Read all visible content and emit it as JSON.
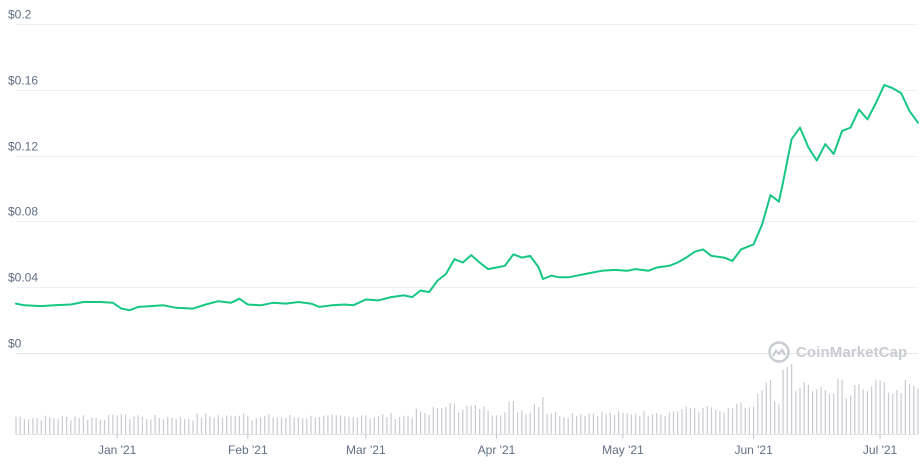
{
  "watermark": {
    "text": "CoinMarketCap",
    "icon": "coinmarketcap-logo-icon",
    "color": "#c9ccd3"
  },
  "chart_data": {
    "type": "line",
    "title": "",
    "xlabel": "",
    "ylabel": "",
    "y_tick_labels": [
      "$0",
      "$0.04",
      "$0.08",
      "$0.12",
      "$0.16",
      "$0.2"
    ],
    "y_ticks": [
      0,
      0.04,
      0.08,
      0.12,
      0.16,
      0.2
    ],
    "ylim": [
      0,
      0.2
    ],
    "x_tick_labels": [
      "Jan '21",
      "Feb '21",
      "Mar '21",
      "Apr '21",
      "May '21",
      "Jun '21",
      "Jul '21"
    ],
    "x_ticks": [
      "2021-01-01",
      "2021-02-01",
      "2021-03-01",
      "2021-04-01",
      "2021-05-01",
      "2021-06-01",
      "2021-07-01"
    ],
    "xlim": [
      "2020-12-08",
      "2021-07-10"
    ],
    "grid": true,
    "line_color": "#16c784",
    "volume_color": "#c8cbd3",
    "series": [
      {
        "values": [
          [
            "2020-12-08",
            0.03
          ],
          [
            "2020-12-10",
            0.029
          ],
          [
            "2020-12-14",
            0.0285
          ],
          [
            "2020-12-17",
            0.029
          ],
          [
            "2020-12-21",
            0.0295
          ],
          [
            "2020-12-24",
            0.031
          ],
          [
            "2020-12-28",
            0.031
          ],
          [
            "2020-12-31",
            0.0305
          ],
          [
            "2021-01-02",
            0.027
          ],
          [
            "2021-01-04",
            0.026
          ],
          [
            "2021-01-06",
            0.028
          ],
          [
            "2021-01-09",
            0.0285
          ],
          [
            "2021-01-12",
            0.029
          ],
          [
            "2021-01-15",
            0.0275
          ],
          [
            "2021-01-19",
            0.027
          ],
          [
            "2021-01-22",
            0.0295
          ],
          [
            "2021-01-25",
            0.0315
          ],
          [
            "2021-01-28",
            0.0305
          ],
          [
            "2021-01-30",
            0.033
          ],
          [
            "2021-02-01",
            0.0295
          ],
          [
            "2021-02-04",
            0.029
          ],
          [
            "2021-02-07",
            0.0305
          ],
          [
            "2021-02-10",
            0.03
          ],
          [
            "2021-02-13",
            0.031
          ],
          [
            "2021-02-16",
            0.03
          ],
          [
            "2021-02-18",
            0.028
          ],
          [
            "2021-02-21",
            0.029
          ],
          [
            "2021-02-24",
            0.0295
          ],
          [
            "2021-02-26",
            0.029
          ],
          [
            "2021-03-01",
            0.0325
          ],
          [
            "2021-03-04",
            0.032
          ],
          [
            "2021-03-07",
            0.034
          ],
          [
            "2021-03-10",
            0.035
          ],
          [
            "2021-03-12",
            0.034
          ],
          [
            "2021-03-14",
            0.038
          ],
          [
            "2021-03-16",
            0.037
          ],
          [
            "2021-03-18",
            0.044
          ],
          [
            "2021-03-20",
            0.048
          ],
          [
            "2021-03-22",
            0.057
          ],
          [
            "2021-03-24",
            0.055
          ],
          [
            "2021-03-26",
            0.0595
          ],
          [
            "2021-03-28",
            0.055
          ],
          [
            "2021-03-30",
            0.051
          ],
          [
            "2021-04-01",
            0.052
          ],
          [
            "2021-04-03",
            0.053
          ],
          [
            "2021-04-05",
            0.06
          ],
          [
            "2021-04-07",
            0.058
          ],
          [
            "2021-04-09",
            0.059
          ],
          [
            "2021-04-11",
            0.052
          ],
          [
            "2021-04-12",
            0.045
          ],
          [
            "2021-04-14",
            0.047
          ],
          [
            "2021-04-16",
            0.046
          ],
          [
            "2021-04-18",
            0.046
          ],
          [
            "2021-04-20",
            0.047
          ],
          [
            "2021-04-22",
            0.048
          ],
          [
            "2021-04-24",
            0.049
          ],
          [
            "2021-04-26",
            0.05
          ],
          [
            "2021-04-29",
            0.0505
          ],
          [
            "2021-05-02",
            0.05
          ],
          [
            "2021-05-04",
            0.051
          ],
          [
            "2021-05-07",
            0.05
          ],
          [
            "2021-05-09",
            0.052
          ],
          [
            "2021-05-12",
            0.053
          ],
          [
            "2021-05-14",
            0.055
          ],
          [
            "2021-05-16",
            0.058
          ],
          [
            "2021-05-18",
            0.0615
          ],
          [
            "2021-05-20",
            0.063
          ],
          [
            "2021-05-22",
            0.059
          ],
          [
            "2021-05-25",
            0.058
          ],
          [
            "2021-05-27",
            0.056
          ],
          [
            "2021-05-29",
            0.063
          ],
          [
            "2021-05-31",
            0.065
          ],
          [
            "2021-06-01",
            0.066
          ],
          [
            "2021-06-03",
            0.078
          ],
          [
            "2021-06-05",
            0.096
          ],
          [
            "2021-06-07",
            0.092
          ],
          [
            "2021-06-08",
            0.104
          ],
          [
            "2021-06-10",
            0.13
          ],
          [
            "2021-06-12",
            0.137
          ],
          [
            "2021-06-14",
            0.125
          ],
          [
            "2021-06-16",
            0.117
          ],
          [
            "2021-06-18",
            0.127
          ],
          [
            "2021-06-20",
            0.121
          ],
          [
            "2021-06-22",
            0.135
          ],
          [
            "2021-06-24",
            0.137
          ],
          [
            "2021-06-26",
            0.148
          ],
          [
            "2021-06-28",
            0.142
          ],
          [
            "2021-06-30",
            0.152
          ],
          [
            "2021-07-02",
            0.163
          ],
          [
            "2021-07-04",
            0.161
          ],
          [
            "2021-07-06",
            0.158
          ],
          [
            "2021-07-08",
            0.147
          ],
          [
            "2021-07-10",
            0.14
          ]
        ]
      }
    ]
  }
}
